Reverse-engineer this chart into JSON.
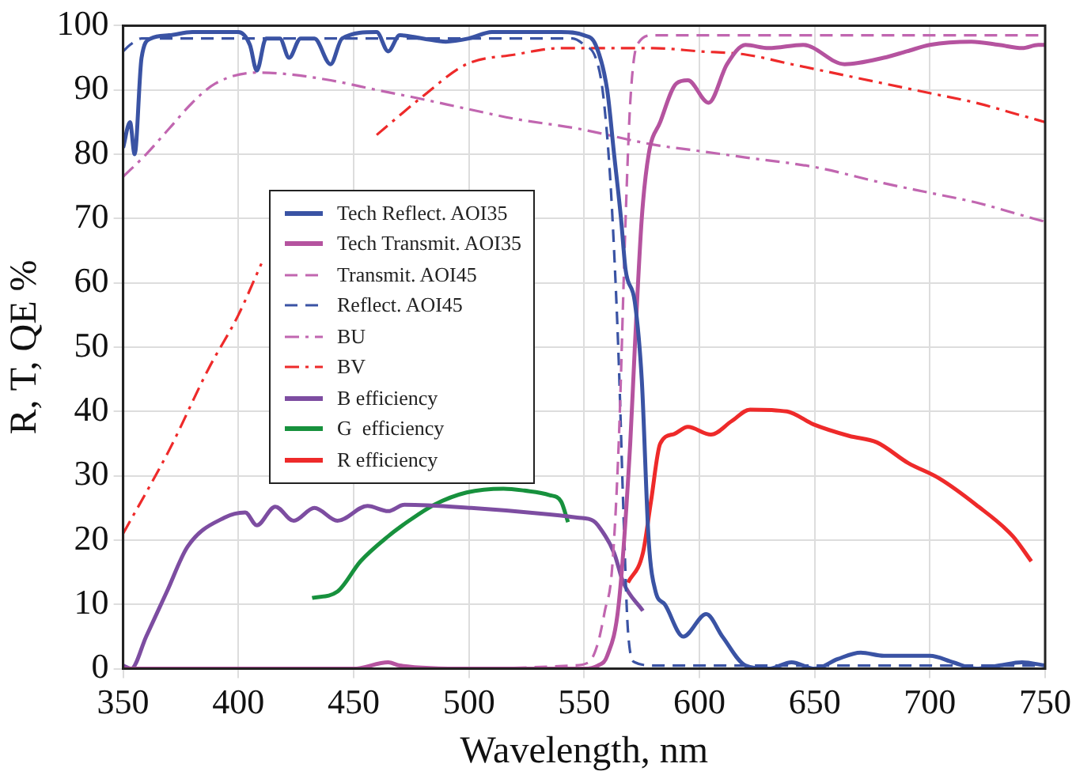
{
  "chart_data": {
    "type": "line",
    "xlabel": "Wavelength, nm",
    "ylabel": "R, T, QE %",
    "xlim": [
      350,
      750
    ],
    "ylim": [
      0,
      100
    ],
    "xticks": [
      350,
      400,
      450,
      500,
      550,
      600,
      650,
      700,
      750
    ],
    "yticks": [
      0,
      10,
      20,
      30,
      40,
      50,
      60,
      70,
      80,
      90,
      100
    ],
    "grid": true,
    "legend": "center left",
    "series": [
      {
        "name": "Tech Reflect. AOI35",
        "color": "#3a53a4",
        "line_style": "solid",
        "x": [
          350,
          353,
          355,
          358,
          362,
          370,
          380,
          400,
          405,
          408,
          412,
          418,
          422,
          427,
          433,
          440,
          445,
          460,
          465,
          470,
          480,
          490,
          500,
          510,
          540,
          550,
          555,
          560,
          563,
          566,
          568,
          572,
          575,
          578,
          581,
          585,
          593,
          603,
          610,
          620,
          630,
          640,
          650,
          660,
          670,
          680,
          690,
          700,
          710,
          720,
          730,
          740,
          750
        ],
        "values": [
          81,
          85,
          80,
          95,
          98,
          98.5,
          99,
          99,
          97,
          93,
          98,
          98,
          95,
          98,
          98,
          94,
          98,
          99,
          96,
          98.5,
          98,
          97.5,
          98,
          99,
          99,
          98.5,
          97,
          90,
          80,
          70,
          62,
          57,
          45,
          20,
          12,
          10,
          5,
          8.5,
          5,
          0.5,
          0,
          1,
          0,
          1.5,
          2.5,
          2,
          2,
          2,
          1,
          0,
          0.5,
          1,
          0.5
        ]
      },
      {
        "name": "Tech Transmit. AOI35",
        "color": "#b5539f",
        "line_style": "solid",
        "x": [
          350,
          400,
          450,
          465,
          470,
          500,
          550,
          556,
          560,
          565,
          570,
          572,
          575,
          578,
          583,
          590,
          595,
          604,
          612,
          620,
          630,
          645,
          663,
          680,
          690,
          700,
          718,
          730,
          740,
          747,
          750
        ],
        "values": [
          0,
          0,
          0,
          1,
          0.5,
          0,
          0,
          0.5,
          2,
          10,
          35,
          50,
          70,
          80,
          85,
          91,
          91.5,
          88,
          94,
          97,
          96.5,
          97,
          94,
          95,
          96,
          97,
          97.5,
          97,
          96.5,
          97,
          97
        ]
      },
      {
        "name": "Transmit. AOI45",
        "color": "#c166b0",
        "line_style": "dashed",
        "x": [
          350,
          400,
          450,
          500,
          545,
          552,
          556,
          559,
          562,
          565,
          568,
          570,
          573,
          580,
          650,
          750
        ],
        "values": [
          0,
          0,
          0,
          0,
          0.5,
          1,
          4,
          9,
          15,
          35,
          70,
          88,
          97,
          98.5,
          98.5,
          98.5
        ]
      },
      {
        "name": "Reflect. AOI45",
        "color": "#3a53a4",
        "line_style": "dashed",
        "x": [
          350,
          353,
          358,
          365,
          400,
          450,
          500,
          545,
          550,
          555,
          558,
          561,
          563,
          565,
          567,
          569,
          572,
          580,
          650,
          750
        ],
        "values": [
          96,
          97,
          98,
          98,
          98,
          98,
          98,
          98,
          97,
          95,
          90,
          78,
          65,
          48,
          25,
          6,
          1,
          0.5,
          0.5,
          0.5
        ]
      },
      {
        "name": "BU",
        "color": "#c166b0",
        "line_style": "dashdot",
        "x": [
          350,
          360,
          370,
          380,
          390,
          408,
          420,
          440,
          460,
          478,
          500,
          520,
          547,
          580,
          600,
          620,
          650,
          680,
          700,
          720,
          740,
          750
        ],
        "values": [
          76.5,
          80,
          84,
          88,
          91,
          92.7,
          92.5,
          91.5,
          90,
          88.7,
          87,
          85.5,
          84,
          81.5,
          80.5,
          79.5,
          78,
          75.5,
          74,
          72.5,
          70.5,
          69.5
        ]
      },
      {
        "name": "BV",
        "color": "#ee2a2a",
        "line_style": "dashdot",
        "x": [
          350,
          370,
          387,
          400,
          410,
          425,
          440,
          460,
          480,
          499,
          520,
          540,
          560,
          580,
          600,
          620,
          640,
          660,
          680,
          700,
          720,
          740,
          750
        ],
        "values": [
          21,
          34,
          46.6,
          55,
          63,
          null,
          null,
          83,
          89,
          94,
          95.5,
          96.5,
          96.5,
          96.5,
          96,
          95.5,
          94,
          92.5,
          91,
          89.5,
          88,
          86,
          85
        ]
      },
      {
        "name": "B efficiency",
        "color": "#7d4da1",
        "line_style": "solid",
        "x": [
          350,
          353.5,
          360,
          369,
          378,
          394,
          403,
          408,
          416,
          424,
          433,
          443,
          456,
          465,
          472,
          501,
          535,
          547,
          554,
          556,
          563,
          567,
          575.5
        ],
        "values": [
          0.5,
          0,
          5,
          12,
          19,
          23.5,
          24.3,
          22.3,
          25.2,
          23,
          25,
          23,
          25.3,
          24.5,
          25.5,
          25,
          24,
          23.5,
          23,
          22.3,
          18,
          13.4,
          9
        ]
      },
      {
        "name": "G  efficiency",
        "color": "#17913d",
        "line_style": "solid",
        "x": [
          432,
          443,
          453,
          465,
          474,
          485,
          499,
          515,
          524,
          535,
          540,
          543
        ],
        "values": [
          11,
          12,
          16.7,
          20.6,
          23,
          25.5,
          27.4,
          28,
          27.7,
          27,
          26,
          22.8
        ]
      },
      {
        "name": "R efficiency",
        "color": "#ee2a2a",
        "line_style": "solid",
        "x": [
          569,
          575.5,
          579,
          583,
          589,
          595,
          605,
          614,
          622,
          638,
          649.5,
          665,
          677,
          690.5,
          704,
          720,
          736,
          744
        ],
        "values": [
          13.4,
          18,
          26,
          35,
          36.5,
          37.6,
          36.4,
          38.5,
          40.3,
          40,
          38,
          36.2,
          35.2,
          32,
          29.6,
          25.5,
          20.6,
          16.7
        ]
      }
    ]
  }
}
